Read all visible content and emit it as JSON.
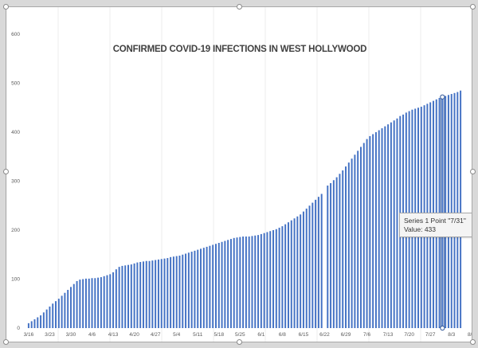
{
  "chart_data": {
    "type": "bar",
    "title": "CONFIRMED COVID-19 INFECTIONS IN WEST HOLLYWOOD",
    "xlabel": "",
    "ylabel": "",
    "ylim": [
      0,
      600
    ],
    "yticks": [
      0,
      100,
      200,
      300,
      400,
      500,
      600
    ],
    "xtick_labels": [
      "3/16",
      "3/23",
      "3/30",
      "4/6",
      "4/13",
      "4/20",
      "4/27",
      "5/4",
      "5/11",
      "5/18",
      "5/25",
      "6/1",
      "6/8",
      "6/15",
      "6/22",
      "6/29",
      "7/6",
      "7/13",
      "7/20",
      "7/27",
      "8/3",
      "8/10",
      "8/17"
    ],
    "color": "#4472c4",
    "grid": "horizontal off",
    "series": [
      {
        "values": [
          10,
          14,
          18,
          22,
          26,
          32,
          38,
          44,
          50,
          55,
          60,
          66,
          72,
          78,
          84,
          90,
          96,
          99,
          100,
          101,
          101,
          102,
          102,
          103,
          104,
          106,
          108,
          110,
          114,
          120,
          125,
          127,
          128,
          129,
          130,
          132,
          134,
          135,
          136,
          137,
          137,
          138,
          139,
          140,
          141,
          142,
          143,
          145,
          146,
          147,
          148,
          150,
          152,
          154,
          156,
          158,
          160,
          162,
          164,
          166,
          168,
          170,
          172,
          174,
          176,
          178,
          180,
          182,
          184,
          185,
          186,
          187,
          187,
          187,
          188,
          189,
          190,
          192,
          194,
          196,
          198,
          200,
          202,
          205,
          208,
          212,
          216,
          220,
          224,
          228,
          232,
          238,
          244,
          250,
          256,
          262,
          268,
          274,
          0,
          291,
          296,
          302,
          308,
          315,
          322,
          330,
          338,
          346,
          354,
          362,
          370,
          378,
          386,
          392,
          396,
          400,
          404,
          408,
          412,
          416,
          420,
          424,
          428,
          433,
          436,
          440,
          443,
          446,
          448,
          450,
          452,
          455,
          458,
          461,
          464,
          467,
          470,
          472,
          474,
          476,
          478,
          480,
          482,
          485
        ]
      }
    ]
  },
  "tooltip": {
    "line1": "Series 1 Point \"7/31\"",
    "line2": "Value: 433"
  }
}
